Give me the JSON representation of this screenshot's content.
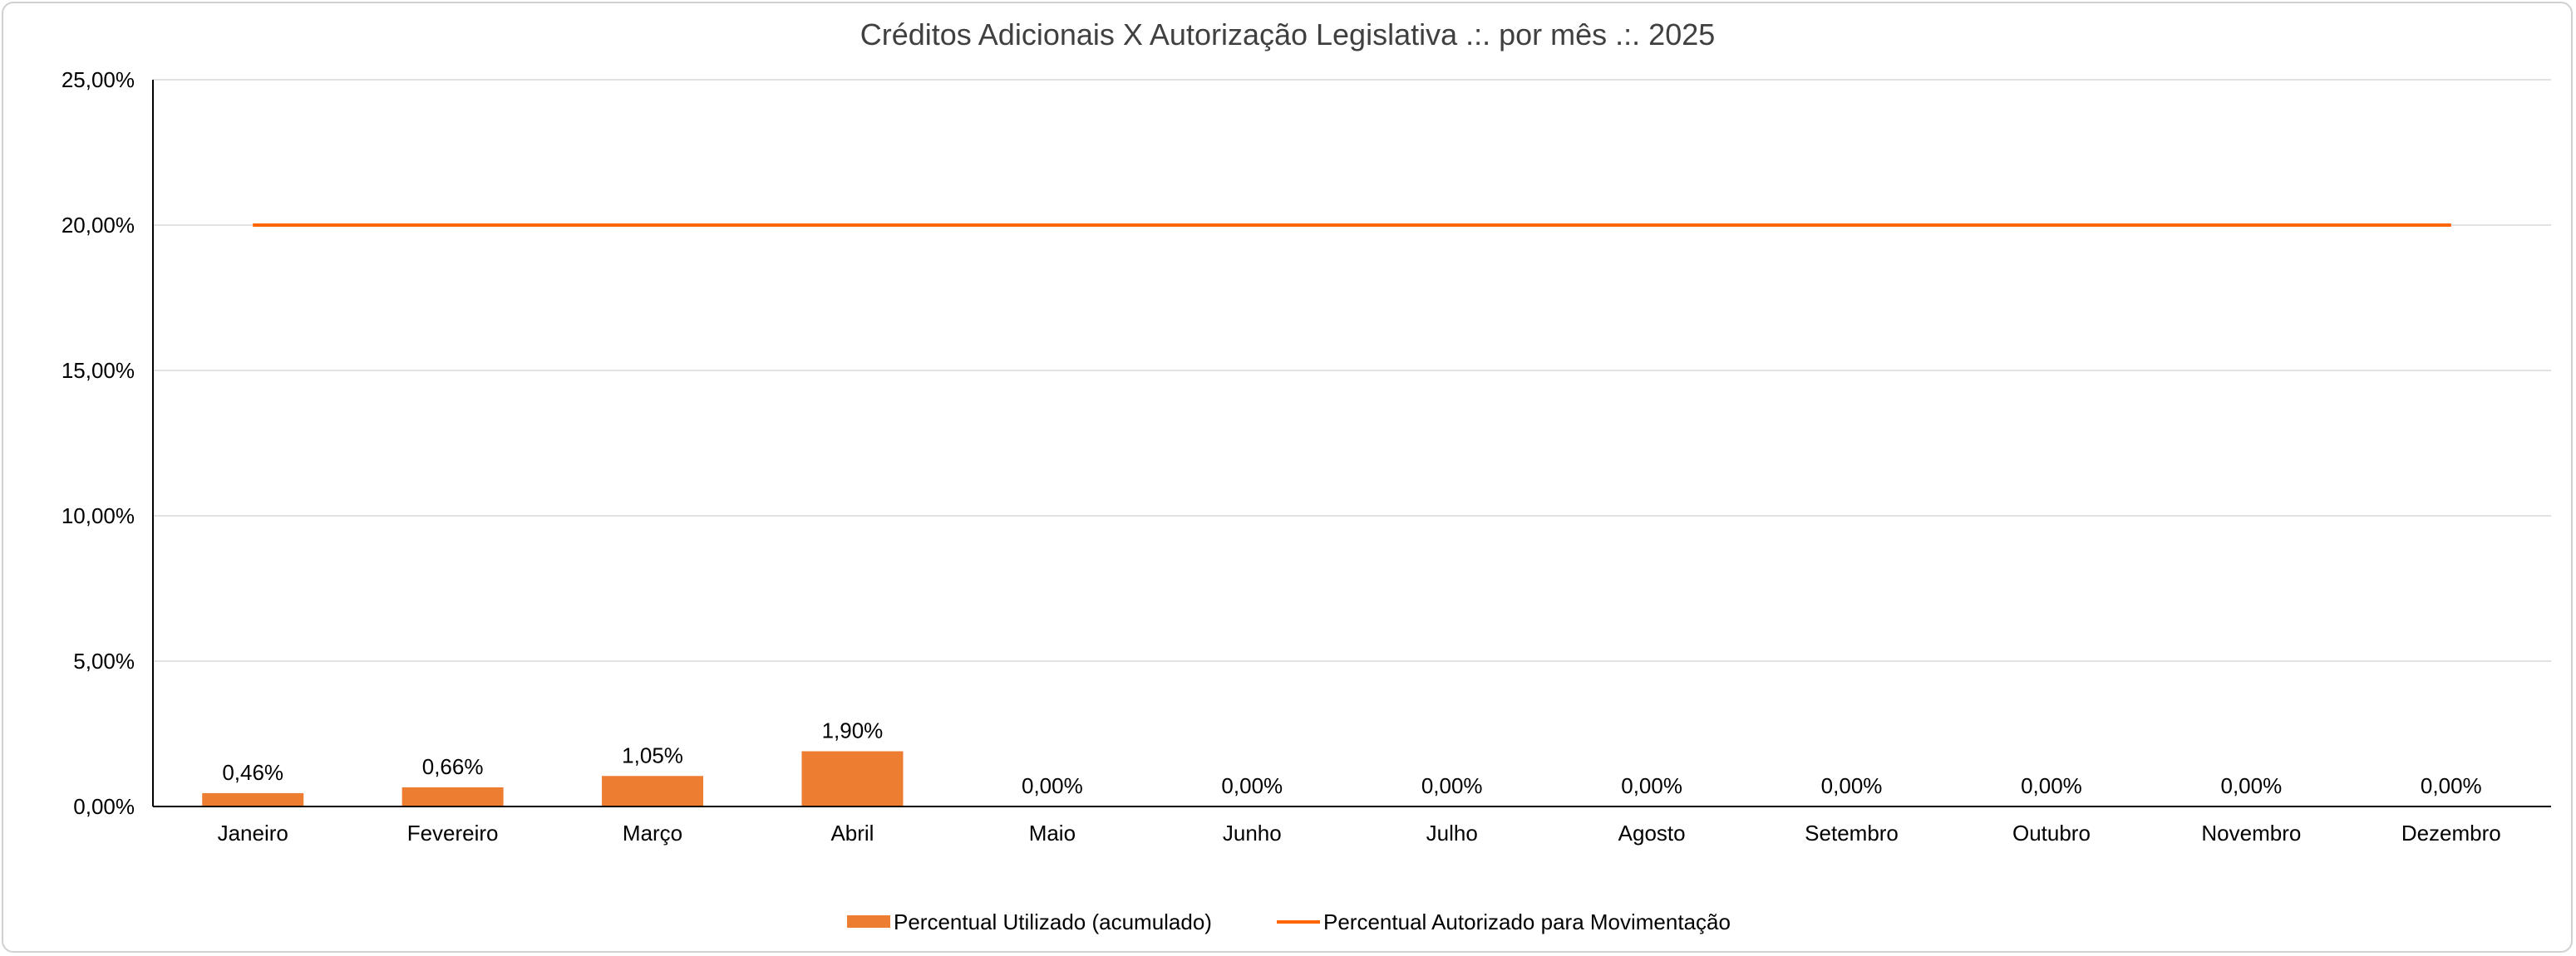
{
  "chart_data": {
    "type": "bar",
    "title": "Créditos Adicionais X Autorização Legislativa .:. por mês .:. 2025",
    "categories": [
      "Janeiro",
      "Fevereiro",
      "Março",
      "Abril",
      "Maio",
      "Junho",
      "Julho",
      "Agosto",
      "Setembro",
      "Outubro",
      "Novembro",
      "Dezembro"
    ],
    "series": [
      {
        "name": "Percentual Utilizado (acumulado)",
        "kind": "bar",
        "color": "#ED7D31",
        "values": [
          0.46,
          0.66,
          1.05,
          1.9,
          0,
          0,
          0,
          0,
          0,
          0,
          0,
          0
        ],
        "data_labels": [
          "0,46%",
          "0,66%",
          "1,05%",
          "1,90%",
          "0,00%",
          "0,00%",
          "0,00%",
          "0,00%",
          "0,00%",
          "0,00%",
          "0,00%",
          "0,00%"
        ]
      },
      {
        "name": "Percentual Autorizado para Movimentação",
        "kind": "line",
        "color": "#FF6600",
        "values": [
          20,
          20,
          20,
          20,
          20,
          20,
          20,
          20,
          20,
          20,
          20,
          20
        ]
      }
    ],
    "y_ticks": [
      {
        "value": 0,
        "label": "0,00%"
      },
      {
        "value": 5,
        "label": "5,00%"
      },
      {
        "value": 10,
        "label": "10,00%"
      },
      {
        "value": 15,
        "label": "15,00%"
      },
      {
        "value": 20,
        "label": "20,00%"
      },
      {
        "value": 25,
        "label": "25,00%"
      }
    ],
    "ylim": [
      0,
      25
    ],
    "grid": true,
    "legend": "bottom-center"
  }
}
